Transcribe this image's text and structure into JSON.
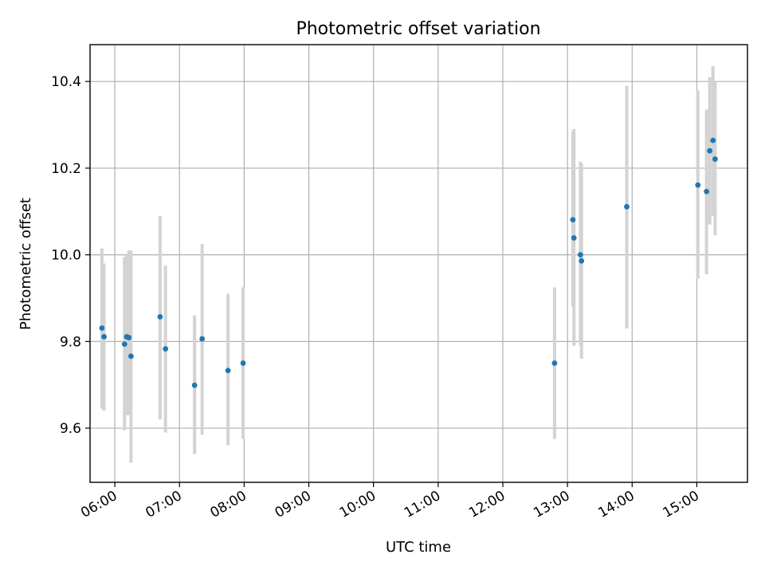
{
  "chart_data": {
    "type": "scatter",
    "title": "Photometric offset variation",
    "xlabel": "UTC time",
    "ylabel": "Photometric offset",
    "xlim": [
      "05:37",
      "15:47"
    ],
    "ylim": [
      9.475,
      10.485
    ],
    "grid": true,
    "x_ticks": [
      "06:00",
      "07:00",
      "08:00",
      "09:00",
      "10:00",
      "11:00",
      "12:00",
      "13:00",
      "14:00",
      "15:00"
    ],
    "y_ticks": [
      9.6,
      9.8,
      10.0,
      10.2,
      10.4
    ],
    "colors": {
      "points": "#1f77b4",
      "error_bars": "#d3d3d3"
    },
    "points": [
      {
        "time": "05:48",
        "y": 9.831,
        "err_low": 9.645,
        "err_high": 10.015
      },
      {
        "time": "05:50",
        "y": 9.811,
        "err_low": 9.64,
        "err_high": 9.98
      },
      {
        "time": "06:09",
        "y": 9.794,
        "err_low": 9.595,
        "err_high": 9.995
      },
      {
        "time": "06:11",
        "y": 9.811,
        "err_low": 9.63,
        "err_high": 10.0
      },
      {
        "time": "06:13",
        "y": 9.809,
        "err_low": 9.63,
        "err_high": 10.01
      },
      {
        "time": "06:15",
        "y": 9.766,
        "err_low": 9.52,
        "err_high": 10.01
      },
      {
        "time": "06:42",
        "y": 9.857,
        "err_low": 9.62,
        "err_high": 10.09
      },
      {
        "time": "06:47",
        "y": 9.783,
        "err_low": 9.59,
        "err_high": 9.975
      },
      {
        "time": "07:14",
        "y": 9.699,
        "err_low": 9.54,
        "err_high": 9.86
      },
      {
        "time": "07:21",
        "y": 9.806,
        "err_low": 9.585,
        "err_high": 10.025
      },
      {
        "time": "07:45",
        "y": 9.733,
        "err_low": 9.56,
        "err_high": 9.91
      },
      {
        "time": "07:59",
        "y": 9.75,
        "err_low": 9.575,
        "err_high": 9.925
      },
      {
        "time": "12:48",
        "y": 9.75,
        "err_low": 9.575,
        "err_high": 9.925
      },
      {
        "time": "13:05",
        "y": 10.081,
        "err_low": 9.88,
        "err_high": 10.285
      },
      {
        "time": "13:06",
        "y": 10.039,
        "err_low": 9.79,
        "err_high": 10.29
      },
      {
        "time": "13:12",
        "y": 10.0,
        "err_low": 9.79,
        "err_high": 10.215
      },
      {
        "time": "13:13",
        "y": 9.986,
        "err_low": 9.76,
        "err_high": 10.21
      },
      {
        "time": "13:55",
        "y": 10.111,
        "err_low": 9.83,
        "err_high": 10.39
      },
      {
        "time": "15:01",
        "y": 10.161,
        "err_low": 9.945,
        "err_high": 10.38
      },
      {
        "time": "15:09",
        "y": 10.146,
        "err_low": 9.955,
        "err_high": 10.335
      },
      {
        "time": "15:12",
        "y": 10.24,
        "err_low": 10.07,
        "err_high": 10.41
      },
      {
        "time": "15:15",
        "y": 10.264,
        "err_low": 10.09,
        "err_high": 10.435
      },
      {
        "time": "15:17",
        "y": 10.221,
        "err_low": 10.045,
        "err_high": 10.4
      }
    ]
  }
}
